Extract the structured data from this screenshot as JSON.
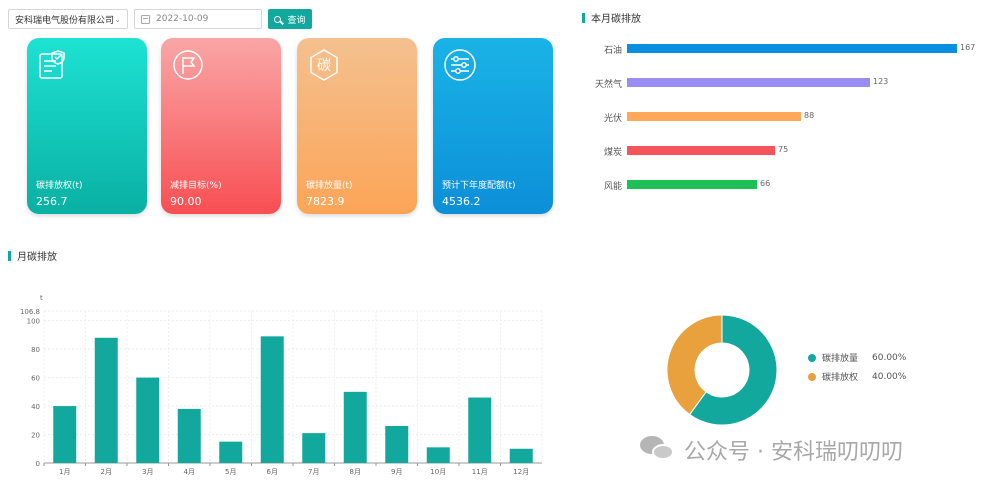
{
  "toolbar": {
    "company": "安科瑞电气股份有限公司",
    "date": "2022-10-09",
    "query_label": "查询"
  },
  "cards": [
    {
      "label": "碳排放权(t)",
      "value": "256.7",
      "icon": "document-check-icon"
    },
    {
      "label": "减排目标(%)",
      "value": "90.00",
      "icon": "flag-icon"
    },
    {
      "label": "碳排放量(t)",
      "value": "7823.9",
      "icon": "carbon-hexagon-icon",
      "icon_text": "碳"
    },
    {
      "label": "预计下年度配额(t)",
      "value": "4536.2",
      "icon": "sliders-icon"
    }
  ],
  "ranking": {
    "title": "本月碳排放",
    "items": [
      {
        "label": "石油",
        "value": 167,
        "color": "#0a8ee0"
      },
      {
        "label": "天然气",
        "value": 123,
        "color": "#9b8cf2"
      },
      {
        "label": "光伏",
        "value": 88,
        "color": "#ffa85a"
      },
      {
        "label": "煤炭",
        "value": 75,
        "color": "#f4545a"
      },
      {
        "label": "风能",
        "value": 66,
        "color": "#1fbf57"
      }
    ]
  },
  "monthly": {
    "title": "月碳排放",
    "chart_data": {
      "type": "bar",
      "ylabel": "t",
      "ylim": [
        0,
        106.8
      ],
      "yticks": [
        0,
        20,
        40,
        60,
        80,
        100,
        106.8
      ],
      "categories": [
        "1月",
        "2月",
        "3月",
        "4月",
        "5月",
        "6月",
        "7月",
        "8月",
        "9月",
        "10月",
        "11月",
        "12月"
      ],
      "values": [
        40,
        88,
        60,
        38,
        15,
        89,
        21,
        50,
        26,
        11,
        46,
        10
      ],
      "color": "#13a89e"
    }
  },
  "donut": {
    "chart_data": {
      "type": "pie",
      "labels": [
        "碳排放量",
        "碳排放权"
      ],
      "values": [
        60.0,
        40.0
      ],
      "colors": [
        "#13a89e",
        "#e8a13c"
      ]
    },
    "legend": [
      {
        "label": "碳排放量",
        "pct": "60.00%"
      },
      {
        "label": "碳排放权",
        "pct": "40.00%"
      }
    ]
  },
  "watermark": "公众号 · 安科瑞叨叨叨"
}
